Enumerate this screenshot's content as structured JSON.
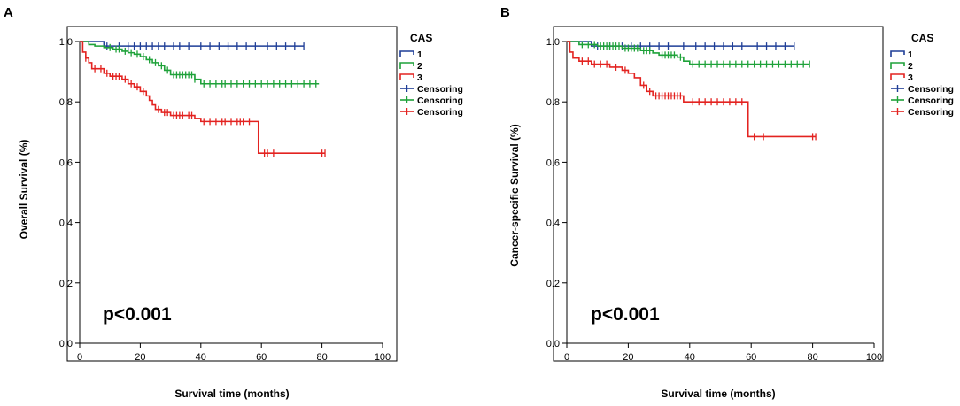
{
  "chart_data": [
    {
      "type": "line",
      "panel_label": "A",
      "title": "",
      "xlabel": "Survival time (months)",
      "ylabel": "Overall Survival (%)",
      "xlim": [
        0,
        100
      ],
      "ylim": [
        0.0,
        1.0
      ],
      "x_ticks": [
        "0",
        "20",
        "40",
        "60",
        "80",
        "100"
      ],
      "y_ticks": [
        "0.0",
        "0.2",
        "0.4",
        "0.6",
        "0.8",
        "1.0"
      ],
      "annotation": "p<0.001",
      "legend_title": "CAS",
      "legend_entries": [
        "1",
        "2",
        "3",
        "Censoring",
        "Censoring",
        "Censoring"
      ],
      "legend_position": "right, outside plot",
      "series": [
        {
          "name": "1",
          "color": "#1f3e97",
          "steps": [
            [
              0,
              1.0
            ],
            [
              8,
              0.985
            ],
            [
              74,
              0.985
            ]
          ],
          "censored": [
            9,
            13,
            16,
            18,
            20,
            22,
            24,
            26,
            28,
            31,
            33,
            36,
            40,
            43,
            46,
            49,
            52,
            55,
            58,
            62,
            65,
            68,
            71,
            74
          ]
        },
        {
          "name": "2",
          "color": "#1fa23a",
          "steps": [
            [
              0,
              1.0
            ],
            [
              3,
              0.99
            ],
            [
              5,
              0.985
            ],
            [
              8,
              0.98
            ],
            [
              11,
              0.975
            ],
            [
              14,
              0.968
            ],
            [
              16,
              0.963
            ],
            [
              18,
              0.958
            ],
            [
              20,
              0.95
            ],
            [
              22,
              0.94
            ],
            [
              24,
              0.93
            ],
            [
              26,
              0.92
            ],
            [
              28,
              0.905
            ],
            [
              30,
              0.89
            ],
            [
              38,
              0.875
            ],
            [
              40,
              0.86
            ],
            [
              79,
              0.86
            ]
          ],
          "censored": [
            10,
            12,
            13,
            15,
            17,
            19,
            21,
            23,
            25,
            27,
            29,
            31,
            32,
            33,
            34,
            35,
            36,
            37,
            38,
            41,
            43,
            45,
            47,
            48,
            50,
            52,
            54,
            56,
            58,
            60,
            62,
            64,
            66,
            68,
            70,
            72,
            74,
            76,
            78
          ]
        },
        {
          "name": "3",
          "color": "#e32320",
          "steps": [
            [
              0,
              1.0
            ],
            [
              1,
              0.965
            ],
            [
              2,
              0.945
            ],
            [
              3,
              0.93
            ],
            [
              4,
              0.91
            ],
            [
              8,
              0.895
            ],
            [
              10,
              0.885
            ],
            [
              14,
              0.875
            ],
            [
              16,
              0.86
            ],
            [
              18,
              0.85
            ],
            [
              20,
              0.835
            ],
            [
              22,
              0.82
            ],
            [
              23,
              0.805
            ],
            [
              24,
              0.79
            ],
            [
              25,
              0.775
            ],
            [
              27,
              0.765
            ],
            [
              30,
              0.755
            ],
            [
              38,
              0.745
            ],
            [
              40,
              0.735
            ],
            [
              59,
              0.735
            ],
            [
              59,
              0.63
            ],
            [
              81,
              0.63
            ]
          ],
          "censored": [
            2,
            5,
            7,
            9,
            11,
            12,
            13,
            15,
            17,
            19,
            21,
            26,
            28,
            29,
            31,
            32,
            33,
            34,
            36,
            37,
            41,
            43,
            45,
            47,
            48,
            50,
            52,
            53,
            54,
            56,
            61,
            62,
            64,
            80,
            81
          ]
        }
      ]
    },
    {
      "type": "line",
      "panel_label": "B",
      "title": "",
      "xlabel": "Survival time (months)",
      "ylabel": "Cancer-specific Survival (%)",
      "xlim": [
        0,
        100
      ],
      "ylim": [
        0.0,
        1.0
      ],
      "x_ticks": [
        "0",
        "20",
        "40",
        "60",
        "80",
        "100"
      ],
      "y_ticks": [
        "0.0",
        "0.2",
        "0.4",
        "0.6",
        "0.8",
        "1.0"
      ],
      "annotation": "p<0.001",
      "legend_title": "CAS",
      "legend_entries": [
        "1",
        "2",
        "3",
        "Censoring",
        "Censoring",
        "Censoring"
      ],
      "legend_position": "right, outside plot",
      "series": [
        {
          "name": "1",
          "color": "#1f3e97",
          "steps": [
            [
              0,
              1.0
            ],
            [
              8,
              0.985
            ],
            [
              74,
              0.985
            ]
          ],
          "censored": [
            10,
            14,
            18,
            21,
            24,
            27,
            30,
            33,
            38,
            42,
            45,
            48,
            51,
            54,
            57,
            62,
            65,
            68,
            71,
            74
          ]
        },
        {
          "name": "2",
          "color": "#1fa23a",
          "steps": [
            [
              0,
              1.0
            ],
            [
              4,
              0.99
            ],
            [
              10,
              0.985
            ],
            [
              18,
              0.978
            ],
            [
              24,
              0.97
            ],
            [
              28,
              0.962
            ],
            [
              30,
              0.955
            ],
            [
              36,
              0.948
            ],
            [
              38,
              0.935
            ],
            [
              40,
              0.925
            ],
            [
              79,
              0.925
            ]
          ],
          "censored": [
            5,
            7,
            9,
            11,
            12,
            13,
            14,
            15,
            16,
            17,
            19,
            20,
            21,
            22,
            23,
            25,
            26,
            27,
            31,
            32,
            33,
            34,
            35,
            37,
            41,
            43,
            45,
            47,
            49,
            51,
            53,
            55,
            57,
            59,
            61,
            63,
            65,
            67,
            69,
            71,
            73,
            75,
            77,
            79
          ]
        },
        {
          "name": "3",
          "color": "#e32320",
          "steps": [
            [
              0,
              1.0
            ],
            [
              1,
              0.965
            ],
            [
              2,
              0.945
            ],
            [
              4,
              0.935
            ],
            [
              8,
              0.925
            ],
            [
              14,
              0.915
            ],
            [
              18,
              0.905
            ],
            [
              20,
              0.895
            ],
            [
              22,
              0.88
            ],
            [
              24,
              0.855
            ],
            [
              26,
              0.835
            ],
            [
              28,
              0.82
            ],
            [
              38,
              0.8
            ],
            [
              59,
              0.8
            ],
            [
              59,
              0.685
            ],
            [
              81,
              0.685
            ]
          ],
          "censored": [
            5,
            7,
            9,
            11,
            13,
            16,
            19,
            25,
            27,
            29,
            30,
            31,
            32,
            33,
            34,
            35,
            36,
            37,
            41,
            43,
            45,
            47,
            49,
            51,
            53,
            55,
            57,
            61,
            64,
            80,
            81
          ]
        }
      ]
    }
  ]
}
